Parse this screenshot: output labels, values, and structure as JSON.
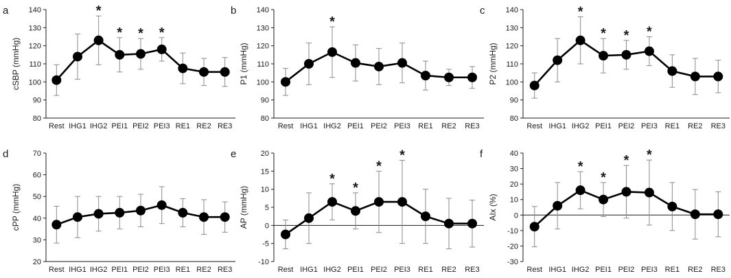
{
  "chart_data": [
    {
      "panel": "a",
      "type": "line",
      "ylabel": "cSBP (mmHg)",
      "ylim": [
        80,
        140
      ],
      "yticks": [
        80,
        90,
        100,
        110,
        120,
        130,
        140
      ],
      "categories": [
        "Rest",
        "IHG1",
        "IHG2",
        "PEI1",
        "PEI2",
        "PEI3",
        "RE1",
        "RE2",
        "RE3"
      ],
      "values": [
        101,
        114,
        123,
        115,
        115.5,
        118,
        107.5,
        105.5,
        105.5
      ],
      "sd": [
        8.5,
        12.5,
        13.5,
        9.5,
        8.5,
        6.5,
        8.5,
        7.5,
        8
      ],
      "significant": [
        false,
        false,
        true,
        true,
        true,
        true,
        false,
        false,
        false
      ],
      "zero_line": false
    },
    {
      "panel": "b",
      "type": "line",
      "ylabel": "P1 (mmHg)",
      "ylim": [
        80,
        140
      ],
      "yticks": [
        80,
        90,
        100,
        110,
        120,
        130,
        140
      ],
      "categories": [
        "Rest",
        "IHG1",
        "IHG2",
        "PEI1",
        "PEI2",
        "PEI3",
        "RE1",
        "RE2",
        "RE3"
      ],
      "values": [
        100,
        110,
        116.5,
        110.5,
        108.5,
        110.5,
        103.5,
        102.5,
        102.5
      ],
      "sd": [
        7.5,
        11.5,
        14,
        10,
        10,
        11,
        8,
        4.5,
        6
      ],
      "significant": [
        false,
        false,
        true,
        false,
        false,
        false,
        false,
        false,
        false
      ],
      "zero_line": false
    },
    {
      "panel": "c",
      "type": "line",
      "ylabel": "P2 (mmHg)",
      "ylim": [
        80,
        140
      ],
      "yticks": [
        80,
        90,
        100,
        110,
        120,
        130,
        140
      ],
      "categories": [
        "Rest",
        "IHG1",
        "IHG2",
        "PEI1",
        "PEI2",
        "PEI3",
        "RE1",
        "RE2",
        "RE3"
      ],
      "values": [
        98,
        112,
        123,
        114.5,
        115,
        117,
        106,
        103,
        103
      ],
      "sd": [
        7,
        12,
        13,
        9.5,
        8,
        8,
        9,
        10,
        9
      ],
      "significant": [
        false,
        false,
        true,
        true,
        true,
        true,
        false,
        false,
        false
      ],
      "zero_line": false
    },
    {
      "panel": "d",
      "type": "line",
      "ylabel": "cPP (mmHg)",
      "ylim": [
        20,
        70
      ],
      "yticks": [
        20,
        30,
        40,
        50,
        60,
        70
      ],
      "categories": [
        "Rest",
        "IHG1",
        "IHG2",
        "PEI1",
        "PEI2",
        "PEI3",
        "RE1",
        "RE2",
        "RE3"
      ],
      "values": [
        37,
        40.5,
        42,
        42.5,
        43.5,
        46,
        42.5,
        40.5,
        40.5
      ],
      "sd": [
        8.5,
        9.5,
        8,
        7.5,
        7.5,
        8.5,
        6.5,
        8,
        7
      ],
      "significant": [
        false,
        false,
        false,
        false,
        false,
        false,
        false,
        false,
        false
      ],
      "zero_line": false
    },
    {
      "panel": "e",
      "type": "line",
      "ylabel": "AP (mmHg)",
      "ylim": [
        -10,
        20
      ],
      "yticks": [
        -10,
        -5,
        0,
        5,
        10,
        15,
        20
      ],
      "categories": [
        "Rest",
        "IHG1",
        "IHG2",
        "PEI1",
        "PEI2",
        "PEI3",
        "RE1",
        "RE2",
        "RE3"
      ],
      "values": [
        -2.5,
        2,
        6.5,
        4,
        6.5,
        6.5,
        2.5,
        0.5,
        0.5
      ],
      "sd": [
        4,
        7,
        5,
        5,
        8.5,
        11.5,
        7.5,
        7,
        6.5
      ],
      "significant": [
        false,
        false,
        true,
        true,
        true,
        true,
        false,
        false,
        false
      ],
      "zero_line": true
    },
    {
      "panel": "f",
      "type": "line",
      "ylabel": "AIx (%)",
      "ylim": [
        -30,
        40
      ],
      "yticks": [
        -30,
        -20,
        -10,
        0,
        10,
        20,
        30,
        40
      ],
      "categories": [
        "Rest",
        "IHG1",
        "IHG2",
        "PEI1",
        "PEI2",
        "PEI3",
        "RE1",
        "RE2",
        "RE3"
      ],
      "values": [
        -7.5,
        6,
        16,
        10,
        15,
        14.5,
        5.5,
        0.5,
        0.5
      ],
      "sd": [
        13,
        15,
        12,
        11,
        17,
        21,
        15.5,
        16,
        14.5
      ],
      "significant": [
        false,
        false,
        true,
        true,
        true,
        true,
        false,
        false,
        false
      ],
      "zero_line": true
    }
  ],
  "significance_marker": "*"
}
